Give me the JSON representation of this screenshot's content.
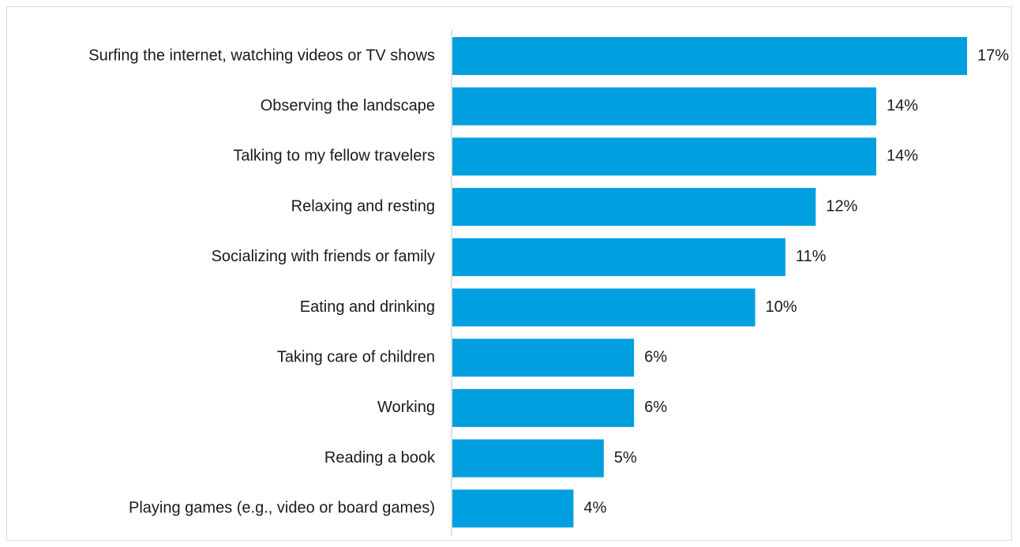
{
  "chart_data": {
    "type": "bar",
    "orientation": "horizontal",
    "title": "",
    "xlabel": "",
    "ylabel": "",
    "categories": [
      "Surfing the internet, watching videos or TV shows",
      "Observing the landscape",
      "Talking to my fellow travelers",
      "Relaxing and resting",
      "Socializing with friends or family",
      "Eating and drinking",
      "Taking care of children",
      "Working",
      "Reading a book",
      "Playing games (e.g., video or board games)"
    ],
    "values": [
      17,
      14,
      14,
      12,
      11,
      10,
      6,
      6,
      5,
      4
    ],
    "value_labels": [
      "17%",
      "14%",
      "14%",
      "12%",
      "11%",
      "10%",
      "6%",
      "6%",
      "5%",
      "4%"
    ],
    "value_unit": "%",
    "xlim": [
      0,
      17
    ],
    "grid": false,
    "legend": "none",
    "colors": {
      "bar": "#009fe0",
      "axis": "#bfbfbf",
      "text": "#1a1a1a",
      "frame": "#d9d9d9"
    }
  }
}
